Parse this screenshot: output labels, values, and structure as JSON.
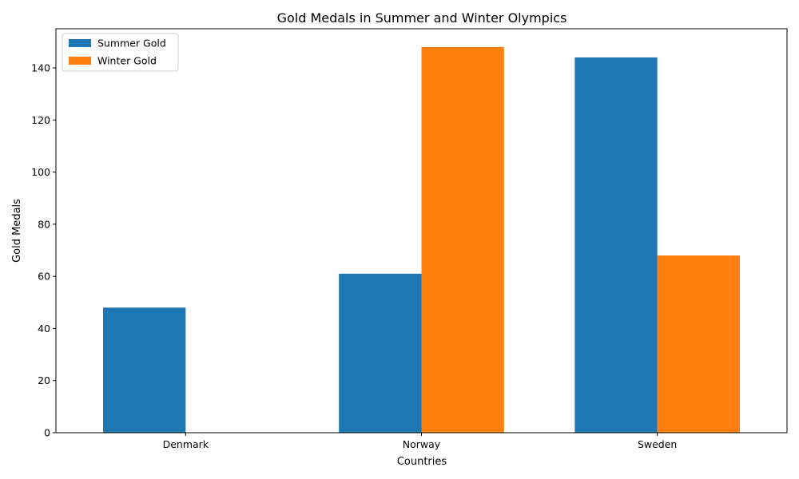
{
  "chart_data": {
    "type": "bar",
    "title": "Gold Medals in Summer and Winter Olympics",
    "xlabel": "Countries",
    "ylabel": "Gold Medals",
    "categories": [
      "Denmark",
      "Norway",
      "Sweden"
    ],
    "series": [
      {
        "name": "Summer Gold",
        "color": "#1f77b4",
        "values": [
          48,
          61,
          144
        ]
      },
      {
        "name": "Winter Gold",
        "color": "#ff7f0e",
        "values": [
          0,
          148,
          68
        ]
      }
    ],
    "ylim": [
      0,
      155
    ],
    "yticks": [
      0,
      20,
      40,
      60,
      80,
      100,
      120,
      140
    ],
    "grid": false,
    "legend": "top-left"
  }
}
